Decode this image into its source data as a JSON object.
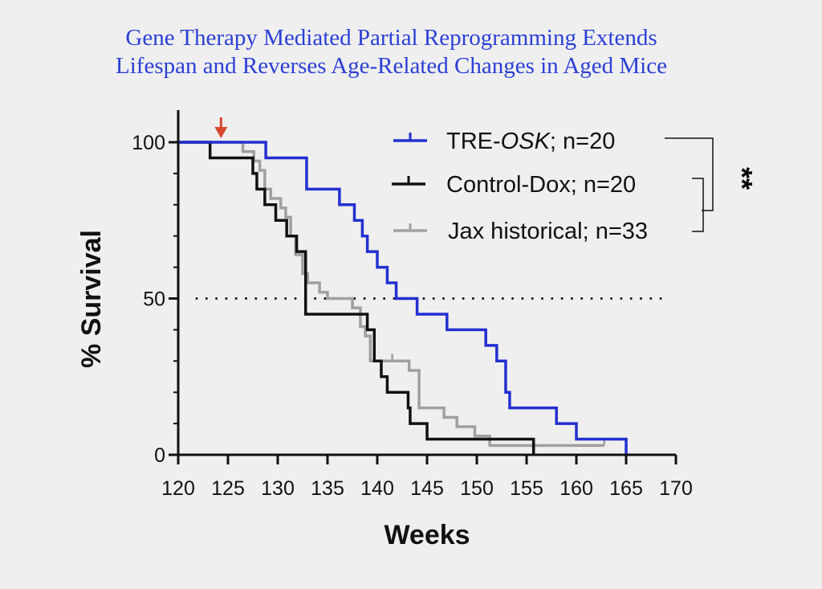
{
  "title_line1": "Gene Therapy Mediated Partial Reprogramming Extends",
  "title_line2": "Lifespan and Reverses Age-Related Changes in Aged Mice",
  "chart_data": {
    "type": "line",
    "subtype": "kaplan-meier-step",
    "xlabel": "Weeks",
    "ylabel": "% Survival",
    "xlim": [
      120,
      170
    ],
    "ylim": [
      0,
      100
    ],
    "xticks": [
      120,
      125,
      130,
      135,
      140,
      145,
      150,
      155,
      160,
      165,
      170
    ],
    "yticks": [
      0,
      50,
      100
    ],
    "reference_line": {
      "y": 50,
      "style": "dotted"
    },
    "treatment_start_arrow_week": 124.3,
    "significance": "**",
    "legend_position": "top-right",
    "series": [
      {
        "name": "TRE-OSK; n=20",
        "name_prefix": "TRE-",
        "name_italic": "OSK",
        "name_suffix": "; n=20",
        "color": "#2230d0",
        "steps": [
          [
            128.8,
            95
          ],
          [
            132.9,
            85
          ],
          [
            136.2,
            80
          ],
          [
            137.7,
            75
          ],
          [
            138.5,
            70
          ],
          [
            139,
            65
          ],
          [
            140,
            60
          ],
          [
            141,
            55
          ],
          [
            141.9,
            50
          ],
          [
            144,
            45
          ],
          [
            147,
            40
          ],
          [
            150.9,
            35
          ],
          [
            152,
            30
          ],
          [
            152.9,
            20
          ],
          [
            153.3,
            15
          ],
          [
            158,
            10
          ],
          [
            160,
            5
          ],
          [
            165,
            0
          ]
        ],
        "end": 165
      },
      {
        "name": "Control-Dox; n=20",
        "color": "#111111",
        "steps": [
          [
            123.2,
            95
          ],
          [
            127.5,
            90
          ],
          [
            127.9,
            85
          ],
          [
            128.7,
            80
          ],
          [
            129.8,
            75
          ],
          [
            130.9,
            70
          ],
          [
            131.9,
            65
          ],
          [
            132.8,
            45
          ],
          [
            139,
            40
          ],
          [
            139.7,
            30
          ],
          [
            140.4,
            25
          ],
          [
            141,
            20
          ],
          [
            143.1,
            15
          ],
          [
            143.3,
            10
          ],
          [
            145,
            5
          ],
          [
            155.7,
            0
          ]
        ],
        "end": 155.7
      },
      {
        "name": "Jax historical; n=33",
        "color": "#a0a0a0",
        "steps": [
          [
            126.5,
            97
          ],
          [
            127.6,
            94
          ],
          [
            128.2,
            91
          ],
          [
            128.7,
            85
          ],
          [
            129.3,
            82
          ],
          [
            130.3,
            79
          ],
          [
            130.8,
            76
          ],
          [
            131.3,
            70
          ],
          [
            131.8,
            64
          ],
          [
            132.5,
            58
          ],
          [
            133,
            55
          ],
          [
            134.2,
            52
          ],
          [
            135,
            50
          ],
          [
            137.5,
            47
          ],
          [
            138.3,
            41
          ],
          [
            138.8,
            38
          ],
          [
            139.3,
            30
          ],
          [
            143.2,
            27
          ],
          [
            144.2,
            15
          ],
          [
            146.7,
            12
          ],
          [
            148,
            9
          ],
          [
            149.8,
            6
          ],
          [
            151.3,
            3
          ]
        ],
        "end": 162.8,
        "censored": [
          [
            141.5,
            30
          ],
          [
            162.8,
            3
          ]
        ]
      }
    ]
  }
}
